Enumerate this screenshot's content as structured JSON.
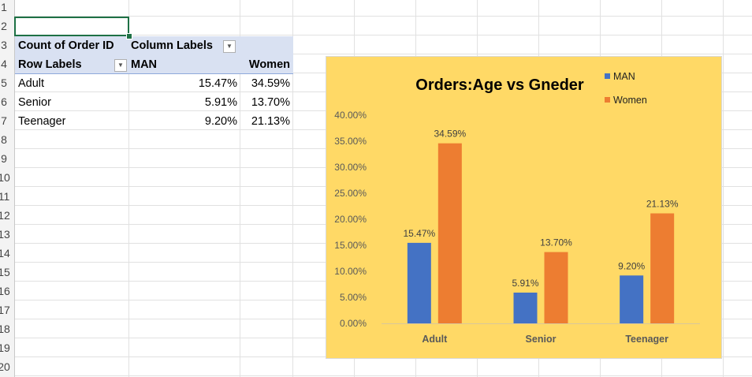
{
  "sheet": {
    "row_numbers": [
      "1",
      "2",
      "3",
      "4",
      "5",
      "6",
      "7",
      "8",
      "9",
      "10",
      "11",
      "12",
      "13",
      "14",
      "15",
      "16",
      "17",
      "18",
      "19",
      "20"
    ]
  },
  "pivot": {
    "value_header": "Count of Order ID",
    "column_labels_header": "Column Labels",
    "row_labels_header": "Row Labels",
    "col_man": "MAN",
    "col_women": "Women",
    "rows": [
      {
        "label": "Adult",
        "man": "15.47%",
        "women": "34.59%"
      },
      {
        "label": "Senior",
        "man": "5.91%",
        "women": "13.70%"
      },
      {
        "label": "Teenager",
        "man": "9.20%",
        "women": "21.13%"
      }
    ]
  },
  "colors": {
    "man": "#4472c4",
    "women": "#ed7d31",
    "chart_bg": "#ffd966",
    "pivot_header": "#d9e1f2",
    "selection": "#1e7145"
  },
  "chart_data": {
    "type": "bar",
    "title": "Orders:Age vs Gneder",
    "categories": [
      "Adult",
      "Senior",
      "Teenager"
    ],
    "series": [
      {
        "name": "MAN",
        "values": [
          15.47,
          5.91,
          9.2
        ],
        "labels": [
          "15.47%",
          "5.91%",
          "9.20%"
        ],
        "color": "#4472c4"
      },
      {
        "name": "Women",
        "values": [
          34.59,
          13.7,
          21.13
        ],
        "labels": [
          "34.59%",
          "13.70%",
          "21.13%"
        ],
        "color": "#ed7d31"
      }
    ],
    "ylim": [
      0,
      40
    ],
    "yticks": [
      "0.00%",
      "5.00%",
      "10.00%",
      "15.00%",
      "20.00%",
      "25.00%",
      "30.00%",
      "35.00%",
      "40.00%"
    ],
    "xlabel": "",
    "ylabel": "",
    "grid": false,
    "legend": "top-right"
  }
}
